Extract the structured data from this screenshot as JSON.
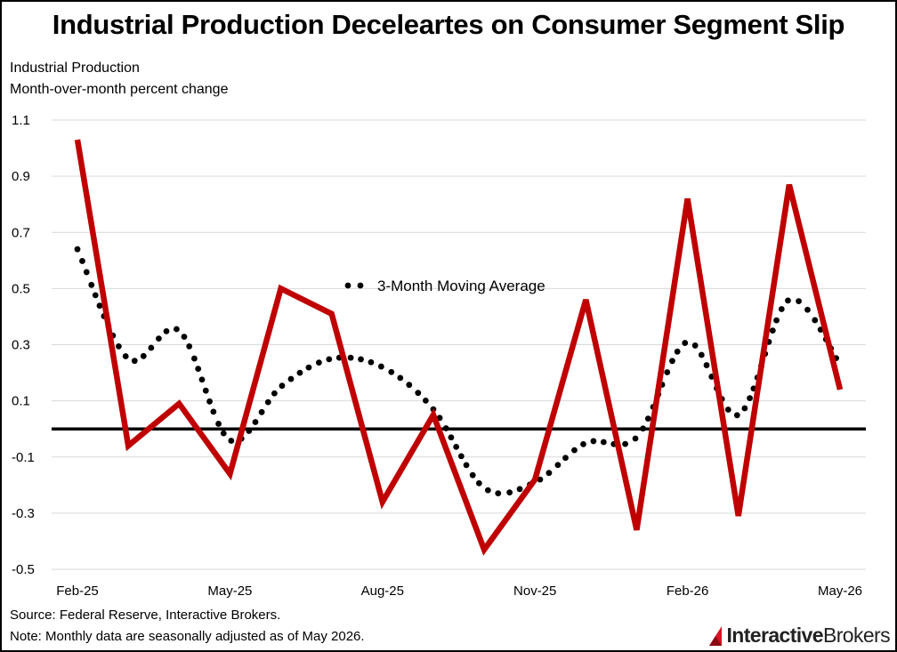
{
  "title": "Industrial Production Deceleartes on Consumer Segment Slip",
  "subtitle_line1": "Industrial Production",
  "subtitle_line2": "Month-over-month percent change",
  "source": "Source: Federal Reserve, Interactive Brokers.",
  "note": "Note: Monthly data are seasonally adjusted as of May 2026.",
  "logo": {
    "brand": "Interactive",
    "brand_second": "Brokers"
  },
  "colors": {
    "line": "#c00000",
    "moving_average": "#000000",
    "grid": "#d9d9d9",
    "zero_line": "#000000"
  },
  "chart_data": {
    "type": "line",
    "title": "Industrial Production Deceleartes on Consumer Segment Slip",
    "ylabel": "Industrial Production\nMonth-over-month percent change",
    "ylim": [
      -0.5,
      1.1
    ],
    "yticks": [
      -0.5,
      -0.3,
      -0.1,
      0.1,
      0.3,
      0.5,
      0.7,
      0.9,
      1.1
    ],
    "ytick_labels": [
      "-0.5",
      "-0.3",
      "-0.1",
      "0.1",
      "0.3",
      "0.5",
      "0.7",
      "0.9",
      "1.1"
    ],
    "grid": true,
    "zero_line": true,
    "x": [
      "Feb-25",
      "Mar-25",
      "Apr-25",
      "May-25",
      "Jun-25",
      "Jul-25",
      "Aug-25",
      "Sep-25",
      "Oct-25",
      "Nov-25",
      "Dec-25",
      "Jan-26",
      "Feb-26",
      "Mar-26",
      "Apr-26",
      "May-26"
    ],
    "xtick_labels": [
      "Feb-25",
      "May-25",
      "Aug-25",
      "Nov-25",
      "Feb-26",
      "May-26"
    ],
    "xtick_indices": [
      0,
      3,
      6,
      9,
      12,
      15
    ],
    "series": [
      {
        "style": "solid",
        "values": [
          1.03,
          -0.06,
          0.09,
          -0.16,
          0.5,
          0.41,
          -0.26,
          0.05,
          -0.43,
          -0.18,
          0.46,
          -0.36,
          0.82,
          -0.31,
          0.87,
          0.14
        ]
      },
      {
        "name": "3-Month Moving Average",
        "style": "dotted",
        "values": [
          0.64,
          0.25,
          0.35,
          -0.04,
          0.15,
          0.25,
          0.22,
          0.07,
          -0.21,
          -0.19,
          -0.05,
          -0.03,
          0.31,
          0.05,
          0.46,
          0.23
        ]
      }
    ],
    "legend": {
      "entries": [
        "3-Month Moving Average"
      ],
      "placement": "center-top"
    }
  }
}
